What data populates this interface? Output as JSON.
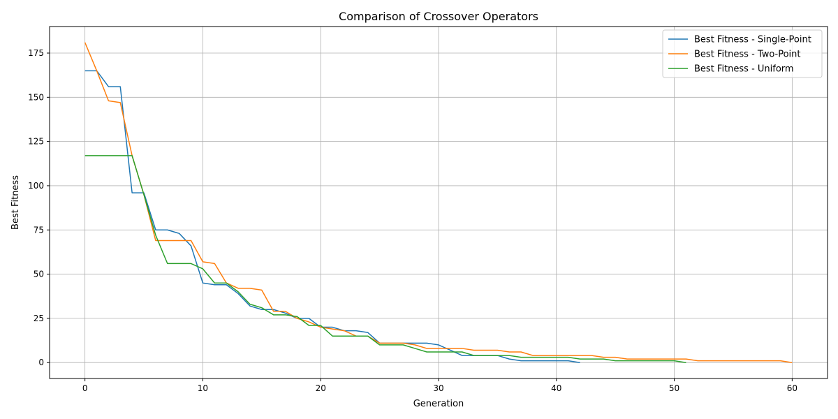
{
  "chart_data": {
    "type": "line",
    "title": "Comparison of Crossover Operators",
    "xlabel": "Generation",
    "ylabel": "Best Fitness",
    "xlim": [
      -3,
      63
    ],
    "ylim": [
      -9,
      190
    ],
    "xticks": [
      0,
      10,
      20,
      30,
      40,
      50,
      60
    ],
    "yticks": [
      0,
      25,
      50,
      75,
      100,
      125,
      150,
      175
    ],
    "grid": true,
    "legend_position": "top-right",
    "series": [
      {
        "name": "Best Fitness - Single-Point",
        "color": "#1f77b4",
        "values": [
          165,
          165,
          156,
          156,
          96,
          96,
          75,
          75,
          73,
          66,
          45,
          44,
          44,
          39,
          32,
          30,
          30,
          28,
          25,
          25,
          20,
          20,
          18,
          18,
          17,
          11,
          11,
          11,
          11,
          11,
          10,
          7,
          4,
          4,
          4,
          4,
          2,
          1,
          1,
          1,
          1,
          1,
          0
        ]
      },
      {
        "name": "Best Fitness - Two-Point",
        "color": "#ff7f0e",
        "values": [
          181,
          165,
          148,
          147,
          117,
          95,
          69,
          69,
          69,
          69,
          57,
          56,
          45,
          42,
          42,
          41,
          29,
          29,
          25,
          23,
          20,
          19,
          18,
          15,
          15,
          11,
          11,
          11,
          10,
          8,
          8,
          8,
          8,
          7,
          7,
          7,
          6,
          6,
          4,
          4,
          4,
          4,
          4,
          4,
          3,
          3,
          2,
          2,
          2,
          2,
          2,
          2,
          1,
          1,
          1,
          1,
          1,
          1,
          1,
          1,
          0
        ]
      },
      {
        "name": "Best Fitness - Uniform",
        "color": "#2ca02c",
        "values": [
          117,
          117,
          117,
          117,
          117,
          95,
          72,
          56,
          56,
          56,
          53,
          45,
          45,
          40,
          33,
          31,
          27,
          27,
          26,
          21,
          21,
          15,
          15,
          15,
          15,
          10,
          10,
          10,
          8,
          6,
          6,
          6,
          6,
          4,
          4,
          4,
          4,
          3,
          3,
          3,
          3,
          3,
          2,
          2,
          2,
          1,
          1,
          1,
          1,
          1,
          1,
          0
        ]
      }
    ]
  }
}
